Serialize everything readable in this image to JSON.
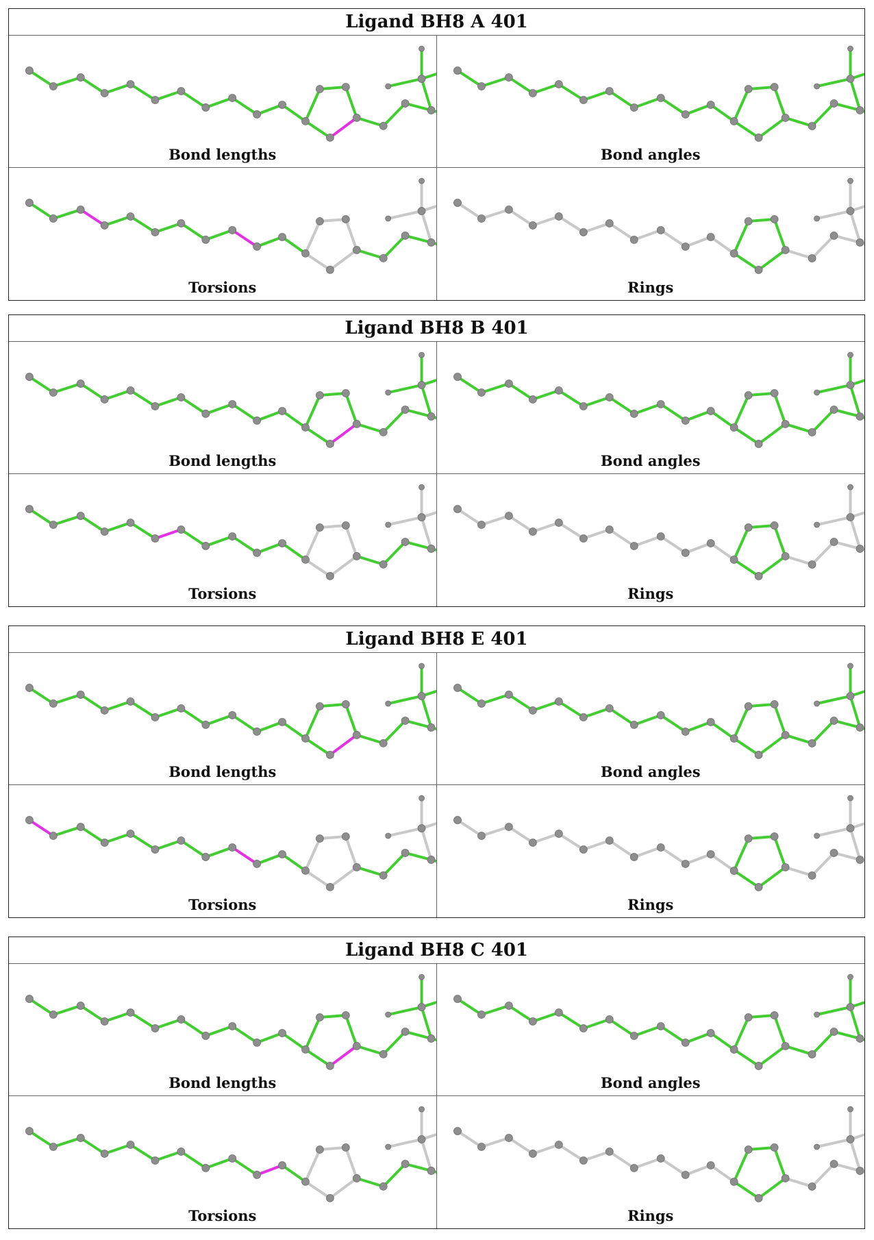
{
  "colors": {
    "ok": "#44cc33",
    "outlier": "#e233e2",
    "neutral": "#c8c8c8",
    "atom": "#8e8e8e"
  },
  "ligands": [
    {
      "title": "Ligand BH8 A 401",
      "panels": [
        {
          "label": "Bond lengths",
          "outliers": [
            [
              15,
              16
            ],
            [
              18,
              19
            ],
            [
              22,
              23
            ],
            [
              23,
              24
            ],
            [
              23,
              25
            ],
            [
              27,
              28
            ],
            [
              27,
              29
            ]
          ]
        },
        {
          "label": "Bond angles",
          "outliers": [
            [
              22,
              23
            ],
            [
              23,
              24
            ],
            [
              23,
              26
            ]
          ]
        },
        {
          "label": "Torsions",
          "highlight": "backbone",
          "outliers": [
            [
              3,
              4
            ],
            [
              9,
              10
            ]
          ]
        },
        {
          "label": "Rings",
          "highlight": "ring"
        }
      ]
    },
    {
      "title": "Ligand BH8 B 401",
      "panels": [
        {
          "label": "Bond lengths",
          "outliers": [
            [
              15,
              16
            ],
            [
              22,
              23
            ],
            [
              23,
              24
            ],
            [
              23,
              25
            ],
            [
              27,
              28
            ],
            [
              27,
              29
            ]
          ]
        },
        {
          "label": "Bond angles",
          "outliers": [
            [
              22,
              23
            ],
            [
              23,
              24
            ],
            [
              23,
              26
            ]
          ]
        },
        {
          "label": "Torsions",
          "highlight": "backbone",
          "outliers": [
            [
              6,
              7
            ],
            [
              26,
              27
            ]
          ]
        },
        {
          "label": "Rings",
          "highlight": "ring"
        }
      ]
    },
    {
      "title": "Ligand BH8 E 401",
      "panels": [
        {
          "label": "Bond lengths",
          "outliers": [
            [
              15,
              16
            ],
            [
              22,
              23
            ],
            [
              23,
              24
            ],
            [
              23,
              25
            ],
            [
              27,
              28
            ],
            [
              27,
              29
            ]
          ]
        },
        {
          "label": "Bond angles",
          "outliers": [
            [
              22,
              23
            ],
            [
              23,
              24
            ],
            [
              23,
              26
            ]
          ]
        },
        {
          "label": "Torsions",
          "highlight": "backbone",
          "outliers": [
            [
              1,
              2
            ],
            [
              9,
              10
            ],
            [
              26,
              27
            ]
          ]
        },
        {
          "label": "Rings",
          "highlight": "ring"
        }
      ]
    },
    {
      "title": "Ligand BH8 C 401",
      "panels": [
        {
          "label": "Bond lengths",
          "outliers": [
            [
              15,
              16
            ],
            [
              22,
              23
            ],
            [
              23,
              24
            ],
            [
              23,
              25
            ],
            [
              27,
              28
            ],
            [
              27,
              29
            ]
          ]
        },
        {
          "label": "Bond angles",
          "outliers": [
            [
              22,
              23
            ],
            [
              23,
              24
            ],
            [
              23,
              26
            ]
          ]
        },
        {
          "label": "Torsions",
          "highlight": "backbone",
          "outliers": [
            [
              10,
              11
            ],
            [
              26,
              27
            ]
          ]
        },
        {
          "label": "Rings",
          "highlight": "ring"
        }
      ]
    }
  ]
}
